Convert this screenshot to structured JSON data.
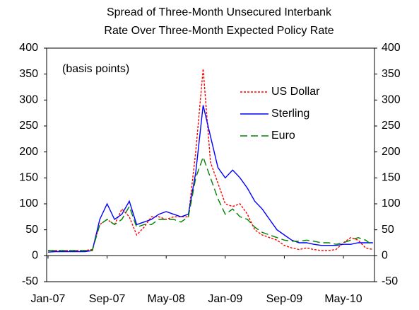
{
  "chart_data": {
    "type": "line",
    "title": [
      "Spread of Three-Month Unsecured Interbank",
      "Rate Over Three-Month Expected Policy Rate"
    ],
    "annotation": "(basis points)",
    "categories": [
      "Jan-07",
      null,
      null,
      null,
      null,
      null,
      null,
      null,
      "Sep-07",
      null,
      null,
      null,
      null,
      null,
      null,
      null,
      "May-08",
      null,
      null,
      null,
      null,
      null,
      null,
      null,
      "Jan-09",
      null,
      null,
      null,
      null,
      null,
      null,
      null,
      "Sep-09",
      null,
      null,
      null,
      null,
      null,
      null,
      null,
      "May-10",
      null,
      null,
      null,
      null
    ],
    "series": [
      {
        "name": "US Dollar",
        "color": "#ff0000",
        "dash": "3,2",
        "values": [
          10,
          10,
          10,
          10,
          10,
          10,
          12,
          60,
          70,
          60,
          90,
          75,
          40,
          55,
          75,
          75,
          70,
          75,
          75,
          75,
          200,
          360,
          180,
          140,
          100,
          95,
          100,
          80,
          50,
          40,
          35,
          30,
          20,
          15,
          12,
          15,
          12,
          10,
          10,
          12,
          25,
          35,
          30,
          15,
          12
        ]
      },
      {
        "name": "Sterling",
        "color": "#0000ff",
        "dash": "none",
        "values": [
          7,
          8,
          8,
          8,
          8,
          8,
          10,
          70,
          100,
          70,
          80,
          105,
          60,
          65,
          70,
          80,
          85,
          80,
          75,
          80,
          160,
          290,
          230,
          170,
          150,
          165,
          150,
          130,
          105,
          90,
          70,
          50,
          40,
          30,
          25,
          25,
          22,
          20,
          20,
          20,
          22,
          22,
          25,
          25,
          25
        ]
      },
      {
        "name": "Euro",
        "color": "#008000",
        "dash": "10,5",
        "values": [
          10,
          10,
          10,
          10,
          10,
          10,
          10,
          60,
          70,
          60,
          70,
          95,
          55,
          60,
          60,
          70,
          70,
          70,
          65,
          75,
          150,
          190,
          150,
          110,
          80,
          90,
          75,
          70,
          55,
          45,
          40,
          35,
          30,
          28,
          28,
          30,
          28,
          25,
          25,
          22,
          25,
          30,
          35,
          30,
          20
        ]
      }
    ],
    "ylim": [
      -50,
      400
    ],
    "yticks": [
      -50,
      0,
      50,
      100,
      150,
      200,
      250,
      300,
      350,
      400
    ],
    "right_axis": true,
    "legend": "upper right"
  }
}
